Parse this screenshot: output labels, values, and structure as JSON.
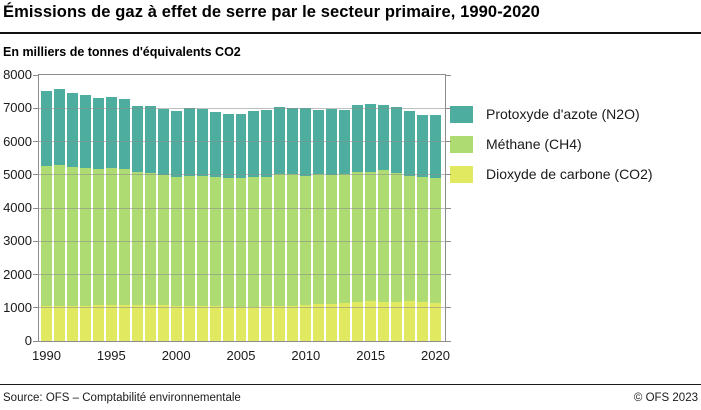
{
  "header": {
    "title": "Émissions de gaz à effet de serre par le secteur primaire, 1990-2020",
    "subtitle": "En milliers de tonnes d'équivalents CO2"
  },
  "footer": {
    "source": "Source: OFS – Comptabilité environnementale",
    "copyright": "© OFS 2023"
  },
  "colors": {
    "n2o": "#4DAEA0",
    "ch4": "#AEDC73",
    "co2": "#E0E95F",
    "axis": "#8c8c8c",
    "grid_overlay": "rgba(140,140,140,0.55)"
  },
  "legend": {
    "items": [
      {
        "label": "Protoxyde d'azote (N2O)",
        "color": "#4DAEA0"
      },
      {
        "label": "Méthane (CH4)",
        "color": "#AEDC73"
      },
      {
        "label": "Dioxyde de carbone (CO2)",
        "color": "#E0E95F"
      }
    ]
  },
  "chart_data": {
    "type": "bar",
    "stacked": true,
    "title": "Émissions de gaz à effet de serre par le secteur primaire, 1990-2020",
    "ylabel": "En milliers de tonnes d'équivalents CO2",
    "x": [
      1990,
      1991,
      1992,
      1993,
      1994,
      1995,
      1996,
      1997,
      1998,
      1999,
      2000,
      2001,
      2002,
      2003,
      2004,
      2005,
      2006,
      2007,
      2008,
      2009,
      2010,
      2011,
      2012,
      2013,
      2014,
      2015,
      2016,
      2017,
      2018,
      2019,
      2020
    ],
    "xticks": [
      1990,
      1995,
      2000,
      2005,
      2010,
      2015,
      2020
    ],
    "ylim": [
      0,
      8000
    ],
    "ytick_step": 1000,
    "grid": true,
    "legend_position": "right",
    "series": [
      {
        "key": "co2",
        "name": "Dioxyde de carbone (CO2)",
        "color": "#E0E95F",
        "values": [
          1050,
          1060,
          1060,
          1060,
          1070,
          1070,
          1080,
          1080,
          1080,
          1070,
          1060,
          1050,
          1050,
          1040,
          1030,
          1030,
          1030,
          1040,
          1060,
          1050,
          1080,
          1100,
          1100,
          1130,
          1160,
          1190,
          1180,
          1180,
          1200,
          1160,
          1150
        ]
      },
      {
        "key": "ch4",
        "name": "Méthane (CH4)",
        "color": "#AEDC73",
        "values": [
          4220,
          4240,
          4180,
          4140,
          4090,
          4120,
          4100,
          4010,
          3980,
          3930,
          3870,
          3920,
          3900,
          3890,
          3870,
          3860,
          3890,
          3900,
          3970,
          3960,
          3890,
          3910,
          3890,
          3880,
          3910,
          3900,
          3970,
          3860,
          3770,
          3770,
          3750
        ]
      },
      {
        "key": "n2o",
        "name": "Protoxyde d'azote (N2O)",
        "color": "#4DAEA0",
        "values": [
          2260,
          2270,
          2220,
          2190,
          2160,
          2160,
          2110,
          1970,
          2010,
          1990,
          2000,
          2040,
          2030,
          1950,
          1920,
          1930,
          1990,
          2010,
          2000,
          1990,
          2030,
          1940,
          1990,
          1930,
          2040,
          2030,
          1940,
          1990,
          1950,
          1880,
          1890
        ]
      }
    ]
  }
}
